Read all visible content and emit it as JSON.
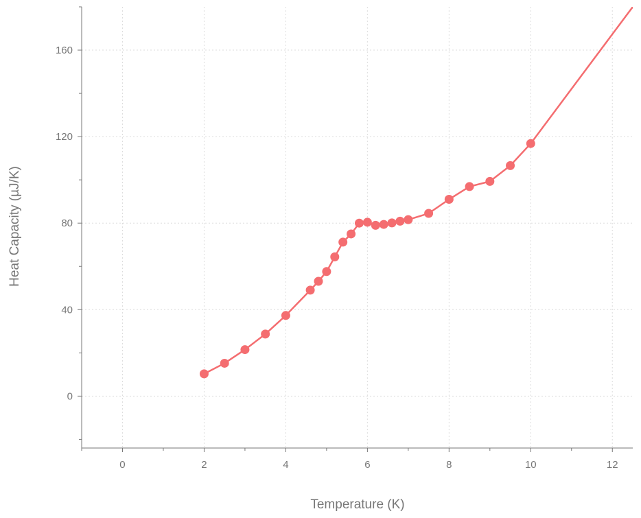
{
  "chart_data": {
    "type": "line",
    "xlabel": "Temperature (K)",
    "ylabel": "Heat Capacity (µJ/K)",
    "xlim": [
      -1,
      12.5
    ],
    "ylim": [
      -24,
      180
    ],
    "x_ticks": [
      0,
      2,
      4,
      6,
      8,
      10,
      12
    ],
    "y_ticks": [
      0,
      40,
      80,
      120,
      160
    ],
    "grid": true,
    "series": [
      {
        "markers": true,
        "x": [
          2,
          2.5,
          3,
          3.5,
          4,
          4.6,
          4.8,
          5,
          5.2,
          5.4,
          5.6,
          5.8,
          6,
          6.2,
          6.4,
          6.6,
          6.8,
          7,
          7.5,
          8,
          8.5,
          9,
          9.5,
          10
        ],
        "y": [
          10.3,
          15.2,
          21.5,
          28.7,
          37.3,
          49,
          53.1,
          57.6,
          64.4,
          71.2,
          75,
          80,
          80.4,
          79,
          79.4,
          80.1,
          80.9,
          81.6,
          84.5,
          91,
          96.9,
          99.3,
          106.6,
          116.8
        ]
      },
      {
        "markers": false,
        "x": [
          10,
          12.5
        ],
        "y": [
          116.8,
          180
        ]
      }
    ],
    "colors": {
      "series": "#f46d70",
      "axis": "#777777",
      "grid": "#dddddd",
      "background": "#ffffff"
    }
  }
}
